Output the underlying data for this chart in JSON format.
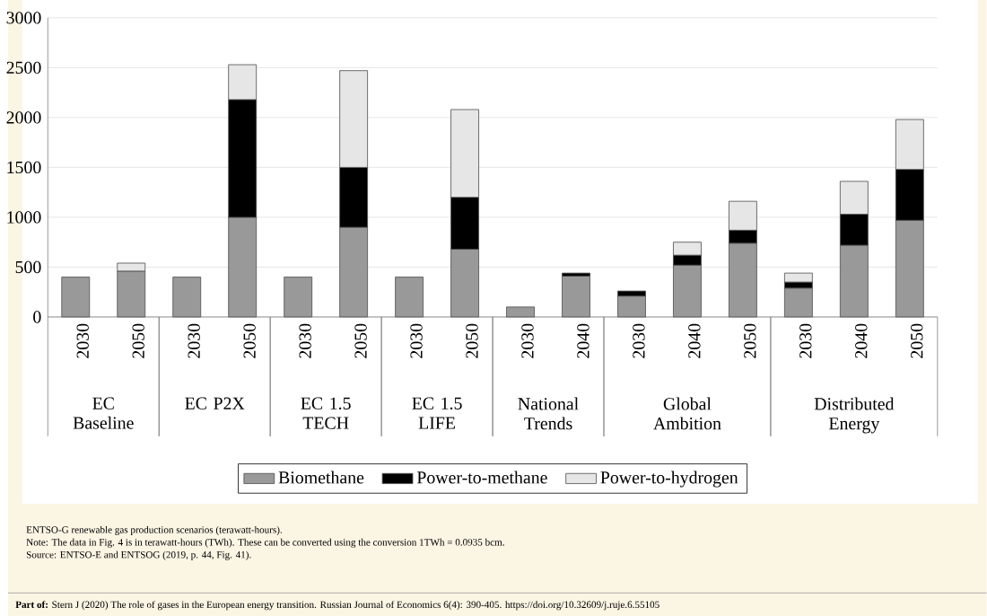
{
  "chart_data": {
    "type": "bar",
    "stacked": true,
    "categories": [
      "2030",
      "2050",
      "2030",
      "2050",
      "2030",
      "2050",
      "2030",
      "2050",
      "2030",
      "2040",
      "2030",
      "2040",
      "2050",
      "2030",
      "2040",
      "2050"
    ],
    "series": [
      {
        "name": "Biomethane",
        "color": "#999999",
        "values": [
          400,
          460,
          400,
          1000,
          400,
          900,
          400,
          680,
          100,
          410,
          210,
          520,
          740,
          290,
          720,
          970
        ]
      },
      {
        "name": "Power-to-methane",
        "color": "#000000",
        "values": [
          null,
          null,
          null,
          1180,
          null,
          600,
          null,
          520,
          null,
          30,
          50,
          100,
          130,
          60,
          310,
          510
        ]
      },
      {
        "name": "Power-to-hydrogen",
        "color": "#e6e6e6",
        "values": [
          null,
          80,
          null,
          350,
          null,
          970,
          null,
          880,
          null,
          null,
          null,
          130,
          290,
          90,
          330,
          500
        ]
      }
    ],
    "ylim": [
      0,
      3000
    ],
    "yticks": [
      0,
      500,
      1000,
      1500,
      2000,
      2500,
      3000
    ],
    "grid": "y",
    "legend": "bottom",
    "annotations": [
      "EC Baseline",
      "EC P2X",
      "EC 1.5 TECH",
      "EC 1.5 LIFE",
      "National Trends",
      "Global Ambition",
      "Distributed Energy",
      "ENTSO-G renewable gas production scenarios (terawatt-hours).",
      "Note: The data in Fig. 4 is in terawatt-hours (TWh). These can be converted using the conversion 1TWh = 0.0935 bcm.",
      "Source: ENTSO-E and ENTSOG (2019, p. 44, Fig. 41).",
      "**Part of:** Stern J (2020) The role of gases in the European energy transition. Russian Journal of Economics 6(4): 390-405. https://doi.org/10.32609/j.ruje.6.55105"
    ]
  }
}
